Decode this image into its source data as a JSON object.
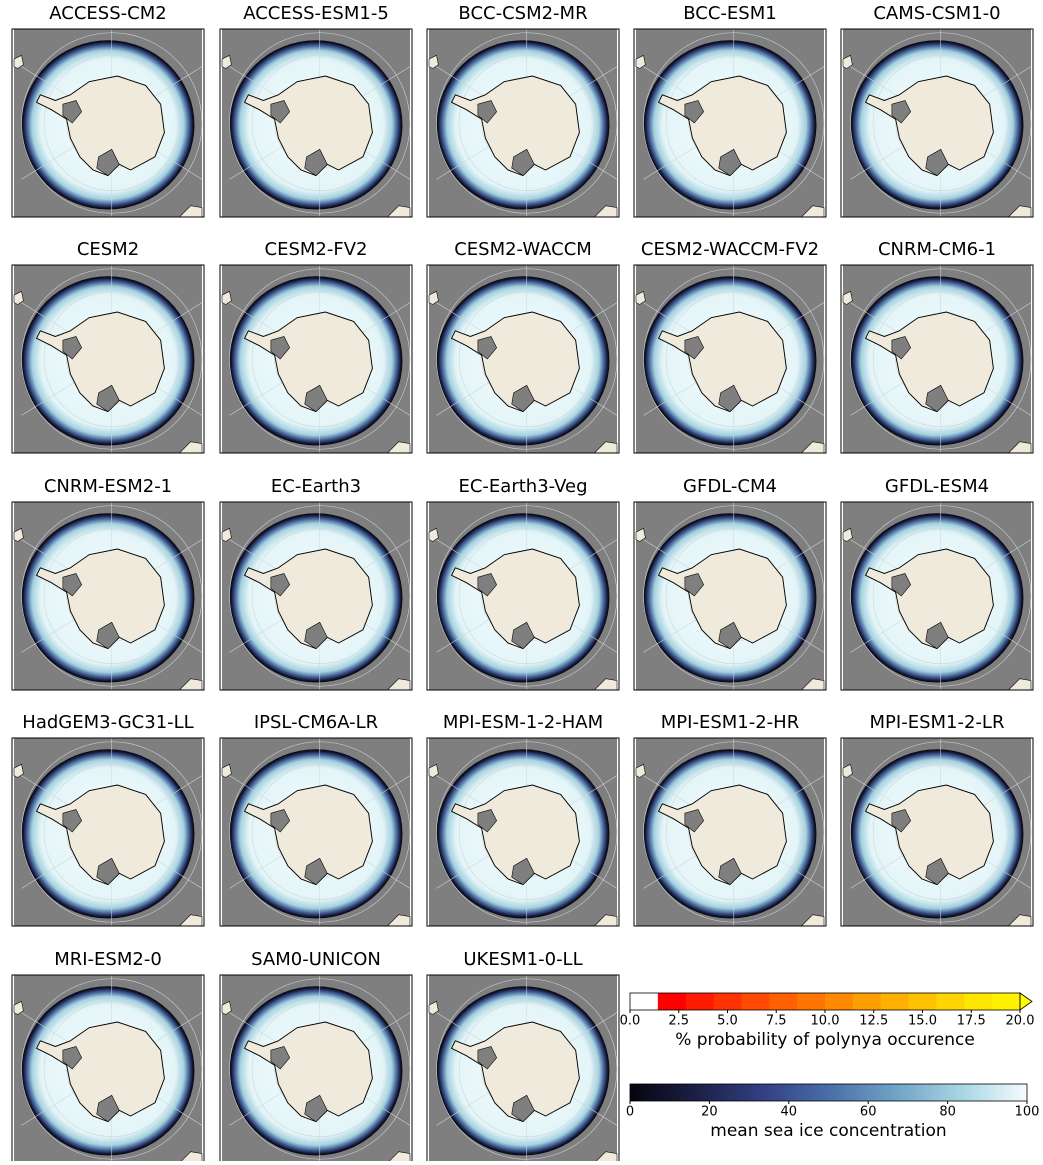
{
  "panels": [
    "ACCESS-CM2",
    "ACCESS-ESM1-5",
    "BCC-CSM2-MR",
    "BCC-ESM1",
    "CAMS-CSM1-0",
    "CESM2",
    "CESM2-FV2",
    "CESM2-WACCM",
    "CESM2-WACCM-FV2",
    "CNRM-CM6-1",
    "CNRM-ESM2-1",
    "EC-Earth3",
    "EC-Earth3-Veg",
    "GFDL-CM4",
    "GFDL-ESM4",
    "HadGEM3-GC31-LL",
    "IPSL-CM6A-LR",
    "MPI-ESM-1-2-HAM",
    "MPI-ESM1-2-HR",
    "MPI-ESM1-2-LR",
    "MRI-ESM2-0",
    "SAM0-UNICON",
    "UKESM1-0-LL"
  ],
  "colorbars": [
    {
      "label": "% probability of polynya occurence",
      "lim": [
        0,
        20
      ],
      "extend": "max",
      "ticks": [
        {
          "value": 0,
          "label": "0.0"
        },
        {
          "value": 2.5,
          "label": "2.5"
        },
        {
          "value": 5,
          "label": "5.0"
        },
        {
          "value": 7.5,
          "label": "7.5"
        },
        {
          "value": 10,
          "label": "10.0"
        },
        {
          "value": 12.5,
          "label": "12.5"
        },
        {
          "value": 15,
          "label": "15.0"
        },
        {
          "value": 17.5,
          "label": "17.5"
        },
        {
          "value": 20,
          "label": "20.0"
        }
      ],
      "colors": [
        "#ffffff",
        "#ff0000",
        "#ff1a00",
        "#ff3300",
        "#ff4a00",
        "#ff6000",
        "#ff7500",
        "#ff8a00",
        "#ff9e00",
        "#ffb000",
        "#ffc200",
        "#ffd400",
        "#ffe600",
        "#fff200",
        "#ffff00"
      ]
    },
    {
      "label": "mean sea ice concentration",
      "lim": [
        0,
        100
      ],
      "extend": "neither",
      "ticks": [
        0,
        20,
        40,
        60,
        80,
        100
      ],
      "colors": [
        "#05050f",
        "#1c1f45",
        "#323f82",
        "#4a6ea8",
        "#6fa2c6",
        "#a8d5e3",
        "#f4fcfd"
      ]
    }
  ]
}
